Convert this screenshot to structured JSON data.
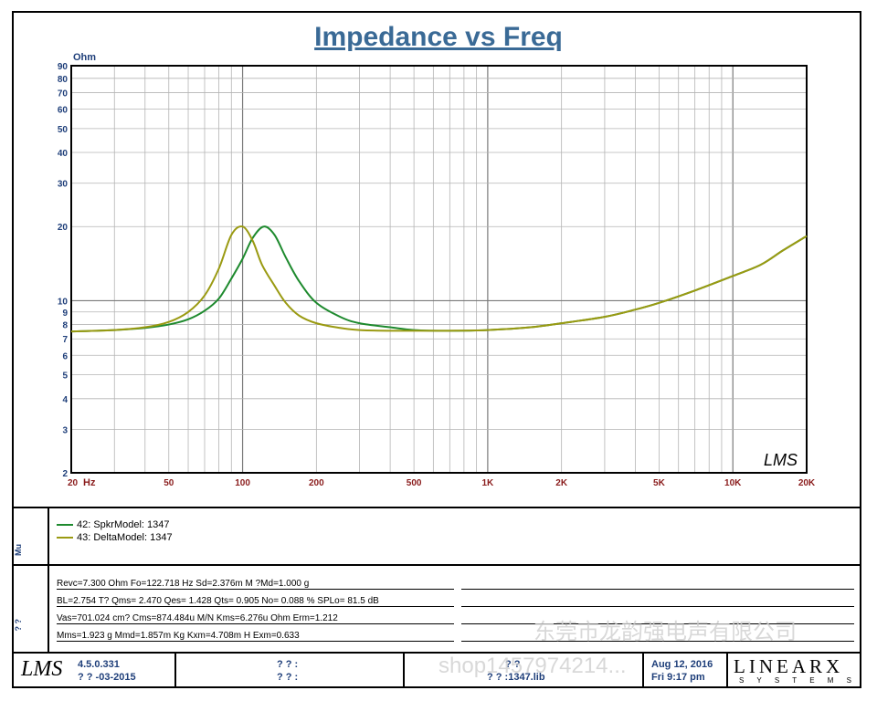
{
  "chart_data": {
    "type": "line",
    "title": "Impedance vs Freq",
    "ylabel": "Ohm",
    "xlabel": "Hz",
    "xscale": "log",
    "yscale": "log",
    "xlim": [
      20,
      20000
    ],
    "ylim": [
      2,
      90
    ],
    "x_ticks": [
      {
        "v": 20,
        "label": "20"
      },
      {
        "v": 50,
        "label": "50"
      },
      {
        "v": 100,
        "label": "100"
      },
      {
        "v": 200,
        "label": "200"
      },
      {
        "v": 500,
        "label": "500"
      },
      {
        "v": 1000,
        "label": "1K"
      },
      {
        "v": 2000,
        "label": "2K"
      },
      {
        "v": 5000,
        "label": "5K"
      },
      {
        "v": 10000,
        "label": "10K"
      },
      {
        "v": 20000,
        "label": "20K"
      }
    ],
    "y_ticks": [
      2,
      3,
      4,
      5,
      6,
      7,
      8,
      9,
      10,
      20,
      30,
      40,
      50,
      60,
      70,
      80,
      90
    ],
    "grid": true,
    "legend_position": "below-plot",
    "series": [
      {
        "name": "42: SpkrModel: 1347",
        "color": "#1e8a2e",
        "points": [
          [
            20,
            7.5
          ],
          [
            30,
            7.6
          ],
          [
            40,
            7.75
          ],
          [
            50,
            8.0
          ],
          [
            60,
            8.4
          ],
          [
            70,
            9.1
          ],
          [
            80,
            10.2
          ],
          [
            90,
            12.3
          ],
          [
            100,
            14.8
          ],
          [
            110,
            18.0
          ],
          [
            122,
            20.0
          ],
          [
            135,
            18.5
          ],
          [
            150,
            15.0
          ],
          [
            170,
            12.0
          ],
          [
            200,
            9.8
          ],
          [
            250,
            8.6
          ],
          [
            300,
            8.1
          ],
          [
            400,
            7.8
          ],
          [
            500,
            7.6
          ],
          [
            700,
            7.55
          ],
          [
            1000,
            7.6
          ],
          [
            1500,
            7.8
          ],
          [
            2000,
            8.1
          ],
          [
            3000,
            8.6
          ],
          [
            4000,
            9.2
          ],
          [
            5000,
            9.8
          ],
          [
            7000,
            11.0
          ],
          [
            10000,
            12.6
          ],
          [
            13000,
            14.0
          ],
          [
            16000,
            16.0
          ],
          [
            20000,
            18.3
          ]
        ]
      },
      {
        "name": "43: DeltaModel: 1347",
        "color": "#9a9a12",
        "points": [
          [
            20,
            7.5
          ],
          [
            30,
            7.6
          ],
          [
            40,
            7.8
          ],
          [
            50,
            8.2
          ],
          [
            60,
            9.0
          ],
          [
            70,
            10.5
          ],
          [
            80,
            13.5
          ],
          [
            90,
            18.5
          ],
          [
            100,
            20.0
          ],
          [
            110,
            17.5
          ],
          [
            120,
            14.0
          ],
          [
            135,
            11.5
          ],
          [
            150,
            9.8
          ],
          [
            170,
            8.7
          ],
          [
            200,
            8.1
          ],
          [
            250,
            7.75
          ],
          [
            300,
            7.6
          ],
          [
            400,
            7.55
          ],
          [
            500,
            7.55
          ],
          [
            700,
            7.55
          ],
          [
            1000,
            7.6
          ],
          [
            1500,
            7.8
          ],
          [
            2000,
            8.1
          ],
          [
            3000,
            8.6
          ],
          [
            4000,
            9.2
          ],
          [
            5000,
            9.8
          ],
          [
            7000,
            11.0
          ],
          [
            10000,
            12.6
          ],
          [
            13000,
            14.0
          ],
          [
            16000,
            16.0
          ],
          [
            20000,
            18.3
          ]
        ]
      }
    ]
  },
  "plot": {
    "y_unit": "Ohm",
    "x_unit": "Hz",
    "lms_mark": "LMS"
  },
  "legend": {
    "items": [
      {
        "label": "42: SpkrModel: 1347",
        "color": "#1e8a2e"
      },
      {
        "label": "43: DeltaModel: 1347",
        "color": "#9a9a12"
      }
    ]
  },
  "side_labels": {
    "legend_side": "Mu",
    "params_side": "? ?"
  },
  "params": {
    "line1": "Revc=7.300 Ohm  Fo=122.718 Hz  Sd=2.376m M ?Md=1.000 g",
    "line2": "BL=2.754 T?    Qms= 2.470  Qes= 1.428  Qts= 0.905  No= 0.088 %   SPLo= 81.5 dB",
    "line3": "Vas=701.024 cm? Cms=874.484u M/N  Kms=6.276u Ohm  Erm=1.212",
    "line4": "Mms=1.923 g  Mmd=1.857m Kg  Kxm=4.708m H  Exm=0.633"
  },
  "footer": {
    "logo": "LMS",
    "version": "4.5.0.331",
    "date_line": "? ? -03-2015",
    "mid1_a": "? ? :",
    "mid1_b": "? ? :",
    "mid2_a": "? ?",
    "mid2_b": "? ? :1347.lib",
    "date_a": "Aug 12, 2016",
    "date_b": "Fri  9:17 pm",
    "brand": "LINEARX",
    "brand_sub": "S Y S T E M S"
  },
  "watermarks": {
    "chinese": "东莞市龙韵强电声有限公司",
    "shop": "shop1457974214..."
  }
}
